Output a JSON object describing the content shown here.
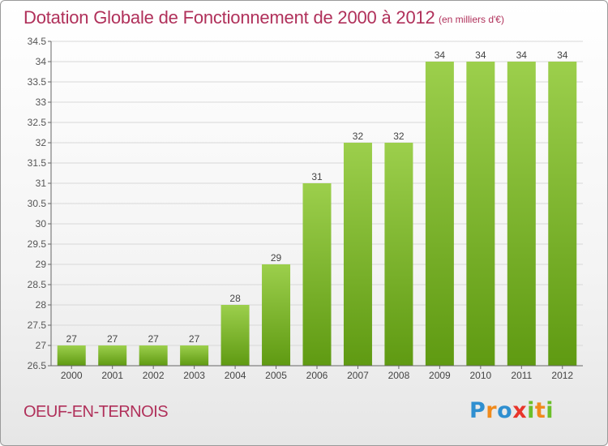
{
  "header": {
    "title": "Dotation Globale de Fonctionnement de 2000 à 2012",
    "unit": "(en milliers d'€)"
  },
  "footer": {
    "commune": "OEUF-EN-TERNOIS",
    "logo_letters": [
      {
        "char": "P",
        "color": "#2f8fd0"
      },
      {
        "char": "r",
        "color": "#f08a1c"
      },
      {
        "char": "o",
        "color": "#2f8fd0"
      },
      {
        "char": "x",
        "color": "#e8352b"
      },
      {
        "char": "i",
        "color": "#6bbf2a"
      },
      {
        "char": "t",
        "color": "#f08a1c"
      },
      {
        "char": "i",
        "color": "#6bbf2a"
      }
    ]
  },
  "chart_data": {
    "type": "bar",
    "title": "Dotation Globale de Fonctionnement de 2000 à 2012",
    "subtitle": "(en milliers d'€)",
    "categories": [
      "2000",
      "2001",
      "2002",
      "2003",
      "2004",
      "2005",
      "2006",
      "2007",
      "2008",
      "2009",
      "2010",
      "2011",
      "2012"
    ],
    "values": [
      27,
      27,
      27,
      27,
      28,
      29,
      31,
      32,
      32,
      34,
      34,
      34,
      34
    ],
    "ylim": [
      26.5,
      34.5
    ],
    "yticks": [
      "26.5",
      "27",
      "27.5",
      "28",
      "28.5",
      "29",
      "29.5",
      "30",
      "30.5",
      "31",
      "31.5",
      "32",
      "32.5",
      "33",
      "33.5",
      "34",
      "34.5"
    ],
    "grid": true,
    "bar_color_top": "#9ccf4c",
    "bar_color_bottom": "#5f9a12"
  }
}
